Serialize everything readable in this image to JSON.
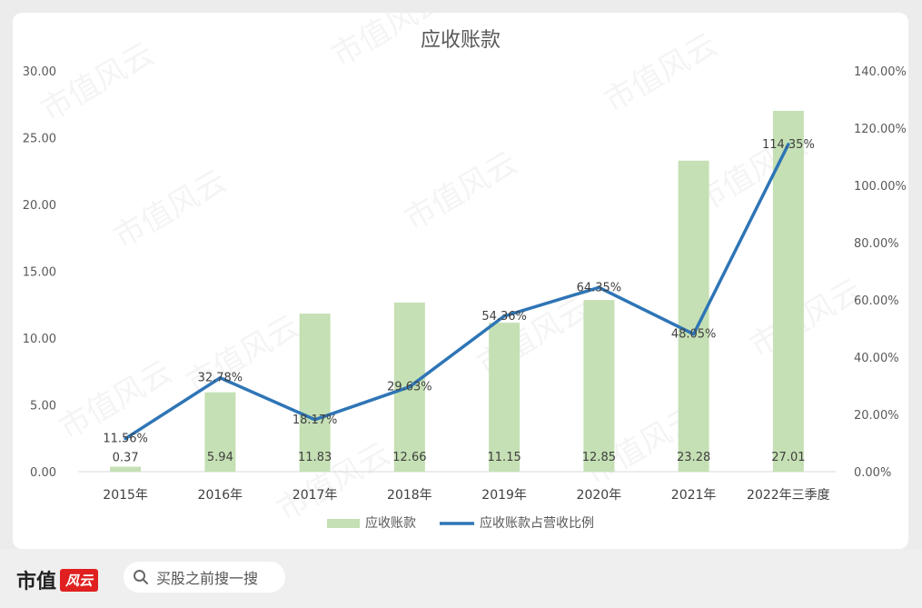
{
  "chart_data": {
    "type": "bar+line",
    "title": "应收账款",
    "categories": [
      "2015年",
      "2016年",
      "2017年",
      "2018年",
      "2019年",
      "2020年",
      "2021年",
      "2022年三季度"
    ],
    "series": [
      {
        "name": "应收账款",
        "type": "bar",
        "axis": "left",
        "color": "#c5e0b4",
        "values": [
          0.37,
          5.94,
          11.83,
          12.66,
          11.15,
          12.85,
          23.28,
          27.01
        ],
        "labels": [
          "0.37",
          "5.94",
          "11.83",
          "12.66",
          "11.15",
          "12.85",
          "23.28",
          "27.01"
        ]
      },
      {
        "name": "应收账款占营收比例",
        "type": "line",
        "axis": "right",
        "color": "#2e75b6",
        "values": [
          11.56,
          32.78,
          18.17,
          29.63,
          54.36,
          64.35,
          48.05,
          114.35
        ],
        "labels": [
          "11.56%",
          "32.78%",
          "18.17%",
          "29.63%",
          "54.36%",
          "64.35%",
          "48.05%",
          "114.35%"
        ]
      }
    ],
    "y_left": {
      "ylim": [
        0,
        30
      ],
      "ticks": [
        "0.00",
        "5.00",
        "10.00",
        "15.00",
        "20.00",
        "25.00",
        "30.00"
      ]
    },
    "y_right": {
      "ylim": [
        0,
        140
      ],
      "ticks": [
        "0.00%",
        "20.00%",
        "40.00%",
        "60.00%",
        "80.00%",
        "100.00%",
        "120.00%",
        "140.00%"
      ]
    },
    "grid": false,
    "legend_position": "bottom"
  },
  "watermark": "市值风云",
  "footer": {
    "brand": "市值",
    "brand_logo": "风云",
    "search_placeholder": "买股之前搜一搜"
  }
}
